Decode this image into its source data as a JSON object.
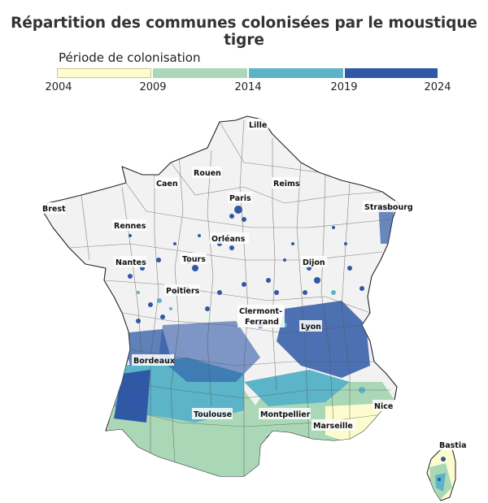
{
  "title": "Répartition des communes colonisées par le moustique tigre",
  "legend": {
    "title": "Période de colonisation",
    "ticks": [
      "2004",
      "2009",
      "2014",
      "2019",
      "2024"
    ],
    "colors": [
      "#fdfccf",
      "#aad8b6",
      "#5bb4c8",
      "#2f59a6"
    ]
  },
  "cities": {
    "lille": "Lille",
    "rouen": "Rouen",
    "caen": "Caen",
    "reims": "Reims",
    "paris": "Paris",
    "brest": "Brest",
    "strasbourg": "Strasbourg",
    "rennes": "Rennes",
    "orleans": "Orléans",
    "nantes": "Nantes",
    "tours": "Tours",
    "dijon": "Dijon",
    "poitiers": "Poitiers",
    "clermont1": "Clermont-",
    "clermont2": "Ferrand",
    "lyon": "Lyon",
    "bordeaux": "Bordeaux",
    "nice": "Nice",
    "toulouse": "Toulouse",
    "montpellier": "Montpellier",
    "marseille": "Marseille",
    "bastia": "Bastia"
  }
}
